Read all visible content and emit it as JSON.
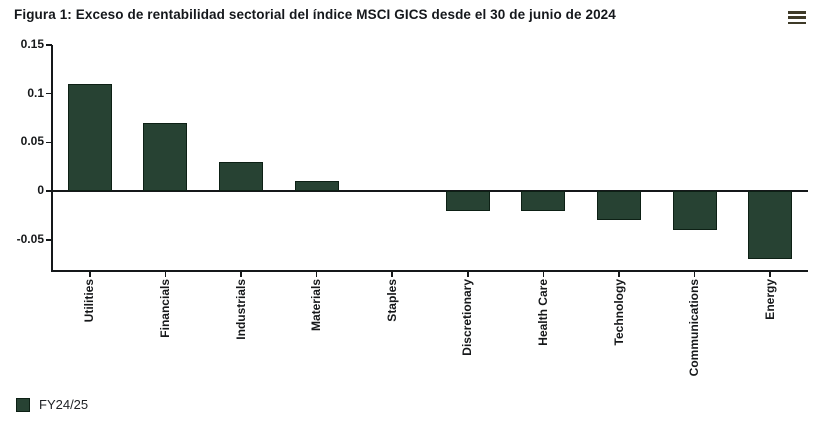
{
  "title": "Figura 1: Exceso de rentabilidad sectorial del índice MSCI GICS desde el 30 de junio de 2024",
  "menu": {
    "icon": "hamburger-menu"
  },
  "legend": {
    "label": "FY24/25"
  },
  "colors": {
    "bar_fill": "#274233",
    "bar_border": "#0d2015",
    "axis": "#15181a",
    "text": "#16181a",
    "background": "#ffffff"
  },
  "chart_data": {
    "type": "bar",
    "title": "Figura 1: Exceso de rentabilidad sectorial del índice MSCI GICS desde el 30 de junio de 2024",
    "categories": [
      "Utilities",
      "Financials",
      "Industrials",
      "Materials",
      "Staples",
      "Discretionary",
      "Health Care",
      "Technology",
      "Communications",
      "Energy"
    ],
    "series": [
      {
        "name": "FY24/25",
        "values": [
          0.11,
          0.07,
          0.03,
          0.01,
          0,
          -0.02,
          -0.02,
          -0.03,
          -0.04,
          -0.07
        ]
      }
    ],
    "xlabel": "",
    "ylabel": "",
    "yticks": [
      0.15,
      0.1,
      0.05,
      0,
      -0.05
    ],
    "ylim": [
      -0.082,
      0.15
    ],
    "grid": false,
    "zero_line": true,
    "legend_position": "bottom-left"
  }
}
